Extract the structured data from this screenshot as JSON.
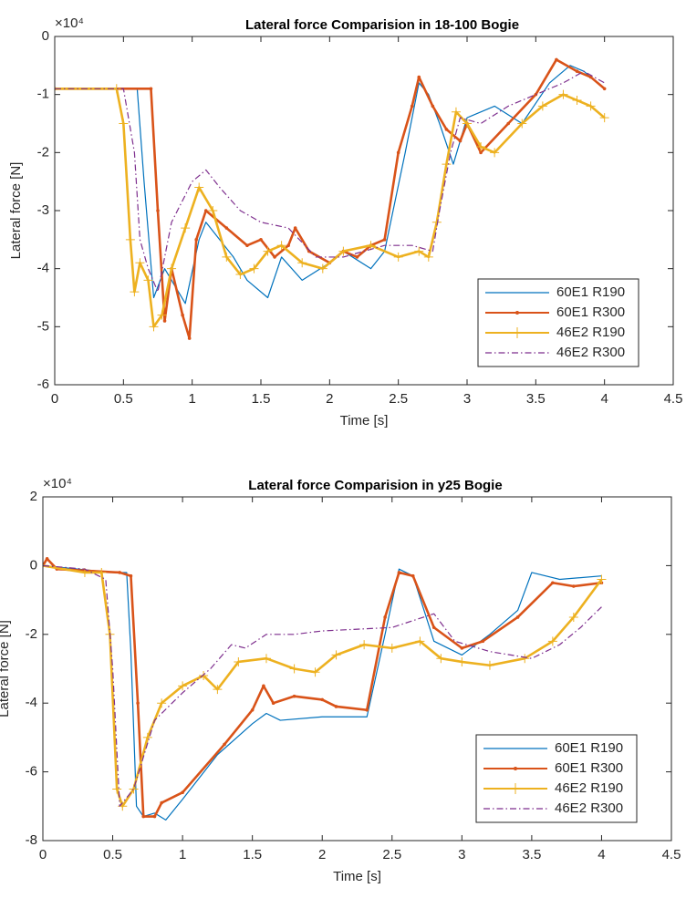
{
  "chart_data": [
    {
      "type": "line",
      "title": "Lateral force Comparision in 18-100 Bogie",
      "xlabel": "Time [s]",
      "ylabel": "Lateral force [N]",
      "axis_multiplier": "×10⁴",
      "xlim": [
        0,
        4.5
      ],
      "xticks": [
        0,
        0.5,
        1,
        1.5,
        2,
        2.5,
        3,
        3.5,
        4,
        4.5
      ],
      "ylim": [
        -6,
        0
      ],
      "yticks": [
        -6,
        -5,
        -4,
        -3,
        -2,
        -1,
        0
      ],
      "legend": "lower right",
      "series": [
        {
          "name": "60E1 R190",
          "color": "#0072bd",
          "style": "solid",
          "marker": null,
          "x": [
            0,
            0.6,
            0.65,
            0.72,
            0.8,
            0.95,
            1.05,
            1.1,
            1.3,
            1.4,
            1.55,
            1.65,
            1.8,
            2.0,
            2.1,
            2.3,
            2.4,
            2.55,
            2.65,
            2.72,
            2.8,
            2.9,
            3.0,
            3.2,
            3.4,
            3.6,
            3.75,
            3.85,
            3.95
          ],
          "values": [
            -0.9,
            -0.9,
            -2.5,
            -4.5,
            -4.0,
            -4.6,
            -3.5,
            -3.2,
            -3.8,
            -4.2,
            -4.5,
            -3.8,
            -4.2,
            -3.9,
            -3.7,
            -4.0,
            -3.7,
            -2.0,
            -0.8,
            -1.0,
            -1.5,
            -2.2,
            -1.4,
            -1.2,
            -1.5,
            -0.8,
            -0.5,
            -0.6,
            -0.8
          ]
        },
        {
          "name": "60E1 R300",
          "color": "#d95319",
          "style": "solid",
          "marker": ".",
          "x": [
            0,
            0.7,
            0.75,
            0.8,
            0.85,
            0.93,
            0.98,
            1.03,
            1.1,
            1.25,
            1.4,
            1.5,
            1.6,
            1.7,
            1.75,
            1.85,
            2.0,
            2.1,
            2.2,
            2.3,
            2.4,
            2.5,
            2.6,
            2.65,
            2.75,
            2.85,
            2.95,
            3.0,
            3.1,
            3.3,
            3.5,
            3.65,
            3.8,
            3.9,
            4.0
          ],
          "values": [
            -0.9,
            -0.9,
            -3.0,
            -4.9,
            -4.0,
            -4.8,
            -5.2,
            -3.5,
            -3.0,
            -3.3,
            -3.6,
            -3.5,
            -3.8,
            -3.6,
            -3.3,
            -3.7,
            -3.9,
            -3.7,
            -3.8,
            -3.6,
            -3.5,
            -2.0,
            -1.2,
            -0.7,
            -1.2,
            -1.6,
            -1.8,
            -1.5,
            -2.0,
            -1.5,
            -1.0,
            -0.4,
            -0.6,
            -0.7,
            -0.9
          ]
        },
        {
          "name": "46E2 R190",
          "color": "#edb120",
          "style": "solid",
          "marker": "+",
          "x": [
            0,
            0.45,
            0.5,
            0.55,
            0.58,
            0.62,
            0.68,
            0.72,
            0.78,
            0.85,
            0.95,
            1.05,
            1.15,
            1.25,
            1.35,
            1.45,
            1.55,
            1.65,
            1.8,
            1.95,
            2.1,
            2.3,
            2.5,
            2.65,
            2.72,
            2.78,
            2.85,
            2.92,
            3.0,
            3.1,
            3.2,
            3.4,
            3.55,
            3.7,
            3.8,
            3.9,
            4.0
          ],
          "values": [
            -0.9,
            -0.9,
            -1.5,
            -3.5,
            -4.4,
            -3.9,
            -4.2,
            -5.0,
            -4.8,
            -4.0,
            -3.3,
            -2.6,
            -3.0,
            -3.8,
            -4.1,
            -4.0,
            -3.7,
            -3.6,
            -3.9,
            -4.0,
            -3.7,
            -3.6,
            -3.8,
            -3.7,
            -3.8,
            -3.2,
            -2.2,
            -1.3,
            -1.5,
            -1.9,
            -2.0,
            -1.5,
            -1.2,
            -1.0,
            -1.1,
            -1.2,
            -1.4
          ]
        },
        {
          "name": "46E2 R300",
          "color": "#7e2f8e",
          "style": "dashdot",
          "marker": null,
          "x": [
            0,
            0.5,
            0.58,
            0.62,
            0.68,
            0.75,
            0.85,
            1.0,
            1.1,
            1.2,
            1.35,
            1.5,
            1.7,
            1.9,
            2.1,
            2.4,
            2.6,
            2.75,
            2.8,
            2.88,
            2.95,
            3.1,
            3.3,
            3.5,
            3.7,
            3.85,
            4.0
          ],
          "values": [
            -0.9,
            -0.9,
            -2.0,
            -3.5,
            -4.0,
            -4.4,
            -3.2,
            -2.5,
            -2.3,
            -2.6,
            -3.0,
            -3.2,
            -3.3,
            -3.8,
            -3.8,
            -3.6,
            -3.6,
            -3.7,
            -3.0,
            -2.0,
            -1.4,
            -1.5,
            -1.2,
            -1.0,
            -0.8,
            -0.6,
            -0.8
          ]
        }
      ]
    },
    {
      "type": "line",
      "title": "Lateral force Comparision in y25 Bogie",
      "xlabel": "Time [s]",
      "ylabel": "Lateral force [N]",
      "axis_multiplier": "×10⁴",
      "xlim": [
        0,
        4.5
      ],
      "xticks": [
        0,
        0.5,
        1,
        1.5,
        2,
        2.5,
        3,
        3.5,
        4,
        4.5
      ],
      "ylim": [
        -8,
        2
      ],
      "yticks": [
        -8,
        -6,
        -4,
        -2,
        0,
        2
      ],
      "legend": "lower right",
      "series": [
        {
          "name": "60E1 R190",
          "color": "#0072bd",
          "style": "solid",
          "marker": null,
          "x": [
            0,
            0.5,
            0.6,
            0.63,
            0.67,
            0.72,
            0.8,
            0.88,
            1.0,
            1.25,
            1.5,
            1.6,
            1.7,
            2.0,
            2.32,
            2.45,
            2.55,
            2.65,
            2.8,
            3.0,
            3.2,
            3.4,
            3.5,
            3.7,
            4.0
          ],
          "values": [
            0,
            -0.2,
            -0.2,
            -2.5,
            -7.0,
            -7.3,
            -7.2,
            -7.4,
            -6.8,
            -5.5,
            -4.6,
            -4.3,
            -4.5,
            -4.4,
            -4.4,
            -2.0,
            -0.1,
            -0.3,
            -2.2,
            -2.6,
            -2.0,
            -1.3,
            -0.2,
            -0.4,
            -0.3
          ]
        },
        {
          "name": "60E1 R300",
          "color": "#d95319",
          "style": "solid",
          "marker": ".",
          "x": [
            0,
            0.03,
            0.1,
            0.55,
            0.63,
            0.68,
            0.72,
            0.8,
            0.85,
            1.0,
            1.3,
            1.5,
            1.58,
            1.65,
            1.8,
            2.0,
            2.1,
            2.32,
            2.45,
            2.55,
            2.65,
            2.8,
            3.0,
            3.15,
            3.4,
            3.65,
            3.8,
            4.0
          ],
          "values": [
            0,
            0.2,
            -0.1,
            -0.2,
            -0.3,
            -4.0,
            -7.3,
            -7.3,
            -6.9,
            -6.6,
            -5.2,
            -4.2,
            -3.5,
            -4.0,
            -3.8,
            -3.9,
            -4.1,
            -4.2,
            -1.5,
            -0.2,
            -0.3,
            -1.8,
            -2.4,
            -2.2,
            -1.5,
            -0.5,
            -0.6,
            -0.5
          ]
        },
        {
          "name": "46E2 R190",
          "color": "#edb120",
          "style": "solid",
          "marker": "+",
          "x": [
            0,
            0.3,
            0.42,
            0.48,
            0.53,
            0.57,
            0.65,
            0.75,
            0.85,
            1.0,
            1.15,
            1.25,
            1.4,
            1.6,
            1.8,
            1.95,
            2.1,
            2.3,
            2.5,
            2.7,
            2.85,
            3.0,
            3.2,
            3.45,
            3.65,
            3.8,
            4.0
          ],
          "values": [
            0,
            -0.2,
            -0.2,
            -2.0,
            -6.5,
            -7.0,
            -6.5,
            -5.0,
            -4.0,
            -3.5,
            -3.2,
            -3.6,
            -2.8,
            -2.7,
            -3.0,
            -3.1,
            -2.6,
            -2.3,
            -2.4,
            -2.2,
            -2.7,
            -2.8,
            -2.9,
            -2.7,
            -2.2,
            -1.5,
            -0.4
          ]
        },
        {
          "name": "46E2 R300",
          "color": "#7e2f8e",
          "style": "dashdot",
          "marker": null,
          "x": [
            0,
            0.3,
            0.45,
            0.5,
            0.55,
            0.65,
            0.8,
            1.0,
            1.2,
            1.35,
            1.45,
            1.6,
            1.8,
            2.0,
            2.5,
            2.8,
            2.95,
            3.2,
            3.5,
            3.7,
            3.85,
            4.0
          ],
          "values": [
            0,
            -0.1,
            -0.4,
            -3.0,
            -7.0,
            -6.5,
            -4.5,
            -3.7,
            -3.0,
            -2.3,
            -2.4,
            -2.0,
            -2.0,
            -1.9,
            -1.8,
            -1.4,
            -2.2,
            -2.5,
            -2.7,
            -2.3,
            -1.8,
            -1.2
          ]
        }
      ]
    }
  ]
}
